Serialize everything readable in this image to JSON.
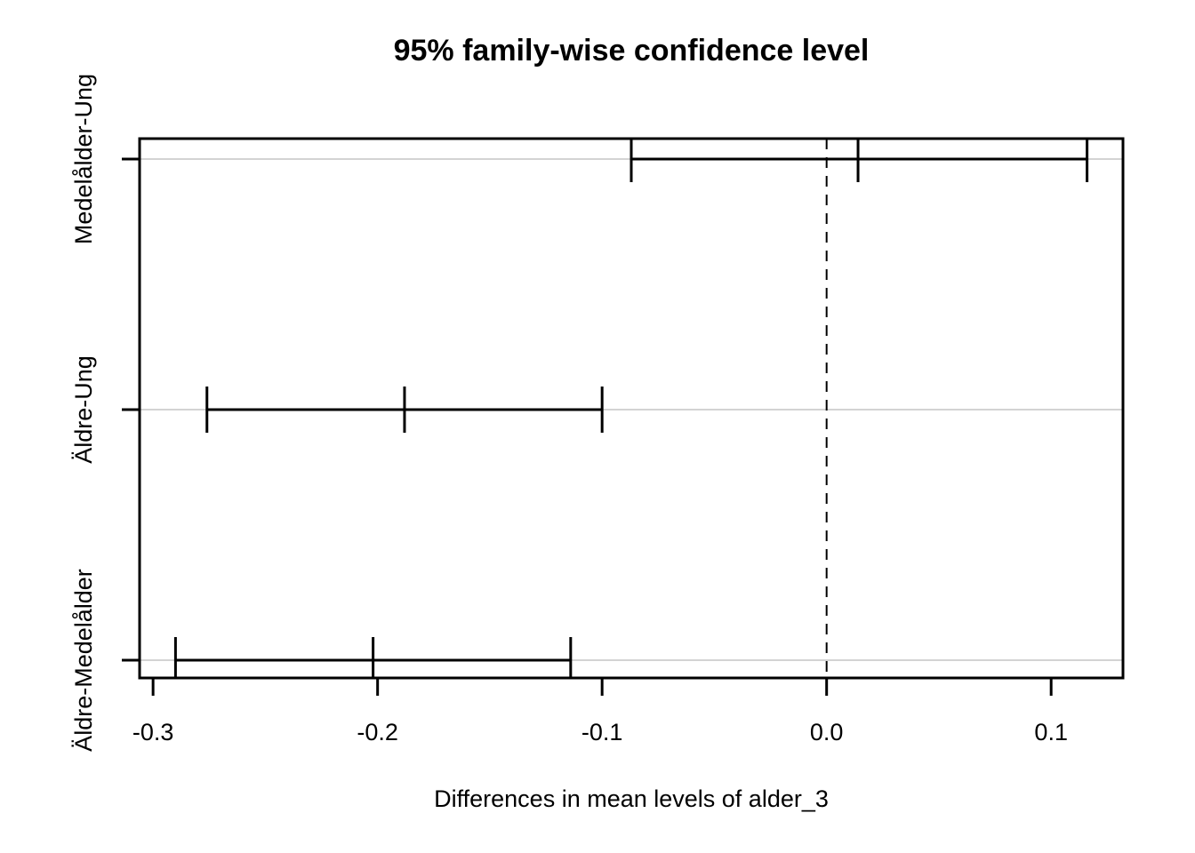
{
  "chart_data": {
    "type": "line",
    "subtype": "tukey-hsd-confidence-intervals",
    "title": "95% family-wise confidence level",
    "xlabel": "Differences in mean levels of alder_3",
    "ylabel": "",
    "comparisons": [
      {
        "label": "Medelålder-Ung",
        "diff": 0.014,
        "lwr": -0.087,
        "upr": 0.116
      },
      {
        "label": "Äldre-Ung",
        "diff": -0.188,
        "lwr": -0.276,
        "upr": -0.1
      },
      {
        "label": "Äldre-Medelålder",
        "diff": -0.202,
        "lwr": -0.29,
        "upr": -0.114
      }
    ],
    "x_ticks": [
      -0.3,
      -0.2,
      -0.1,
      0.0,
      0.1
    ],
    "x_tick_labels": [
      "-0.3",
      "-0.2",
      "-0.1",
      "0.0",
      "0.1"
    ],
    "xlim": [
      -0.306,
      0.132
    ],
    "zero_line_x": 0,
    "zero_line_style": "dashed",
    "grid": true,
    "legend": "none",
    "colors": {
      "line": "#000000",
      "grid": "#d3d3d3",
      "zero_line": "#000000",
      "background": "#ffffff",
      "text": "#000000"
    }
  }
}
